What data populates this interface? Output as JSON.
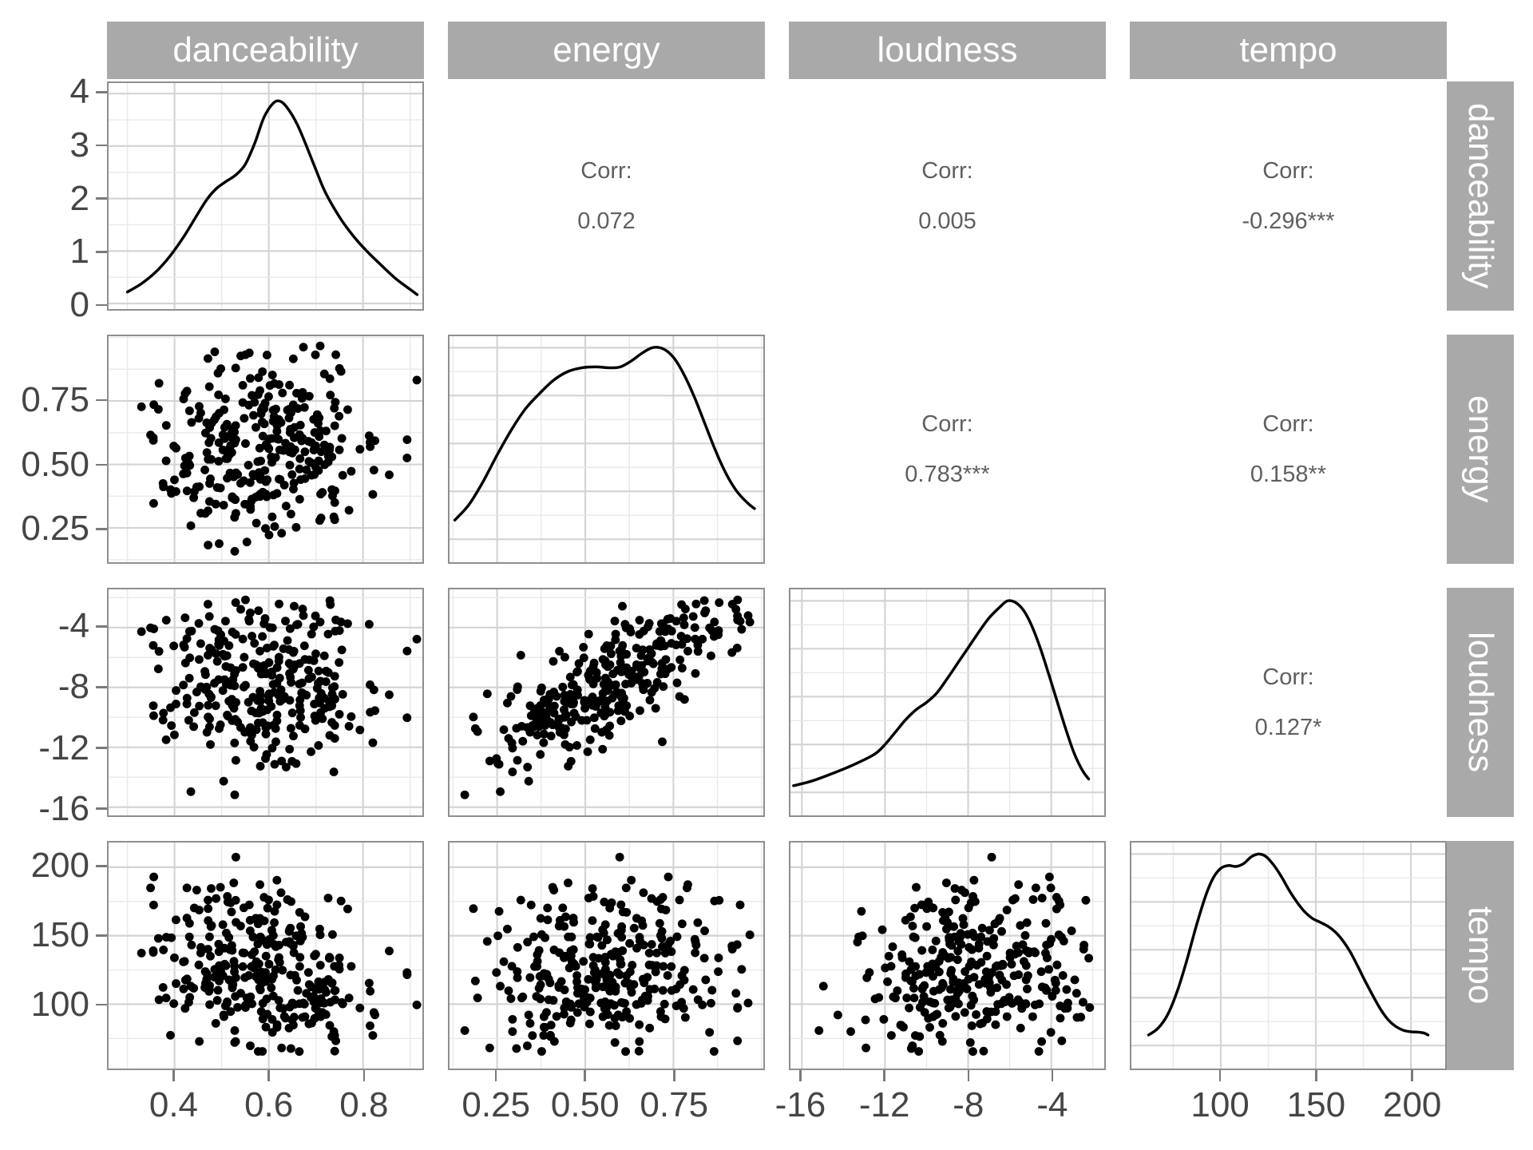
{
  "style": {
    "strip_bg": "#a9a9a9",
    "strip_text_color": "#ffffff",
    "panel_border_color": "#8f8f8f",
    "grid_major_color": "#d4d4d4",
    "grid_minor_color": "#e9e9e9",
    "axis_text_color": "#454545",
    "tick_mark_color": "#7a7a7a",
    "corr_text_color": "#5f5f5f",
    "point_color": "#000000",
    "density_line_color": "#000000"
  },
  "chart_data": {
    "type": "scatter",
    "subtype": "scatterplot-matrix-ggpairs",
    "title": "",
    "variables": [
      "danceability",
      "energy",
      "loudness",
      "tempo"
    ],
    "legend": "none",
    "grid": "on",
    "layout": {
      "diagonal": "density-curve",
      "lower_triangle": "scatter",
      "upper_triangle": "correlation-text"
    },
    "axes": {
      "danceability": {
        "range": [
          0.26,
          0.926
        ],
        "majors": [
          {
            "v": 0.4,
            "label": "0.4"
          },
          {
            "v": 0.6,
            "label": "0.6"
          },
          {
            "v": 0.8,
            "label": "0.8"
          }
        ],
        "minors": [
          0.3,
          0.5,
          0.7,
          0.9
        ]
      },
      "energy": {
        "range": [
          0.115,
          1.005
        ],
        "majors": [
          {
            "v": 0.25,
            "label": "0.25"
          },
          {
            "v": 0.5,
            "label": "0.50"
          },
          {
            "v": 0.75,
            "label": "0.75"
          }
        ],
        "minors": [
          0.125,
          0.375,
          0.625,
          0.875,
          1.0
        ]
      },
      "loudness": {
        "range": [
          -16.55,
          -1.45
        ],
        "majors": [
          {
            "v": -16,
            "label": "-16"
          },
          {
            "v": -12,
            "label": "-12"
          },
          {
            "v": -8,
            "label": "-8"
          },
          {
            "v": -4,
            "label": "-4"
          }
        ],
        "minors": [
          -14,
          -10,
          -6,
          -2
        ]
      },
      "tempo": {
        "range": [
          53,
          218
        ],
        "majors": [
          {
            "v": 100,
            "label": "100"
          },
          {
            "v": 150,
            "label": "150"
          },
          {
            "v": 200,
            "label": "200"
          }
        ],
        "minors": [
          75,
          125,
          175
        ]
      },
      "density_row1": {
        "range": [
          -0.105,
          4.2
        ],
        "majors": [
          {
            "v": 0,
            "label": "0"
          },
          {
            "v": 1,
            "label": "1"
          },
          {
            "v": 2,
            "label": "2"
          },
          {
            "v": 3,
            "label": "3"
          },
          {
            "v": 4,
            "label": "4"
          }
        ],
        "minors": [
          0.5,
          1.5,
          2.5,
          3.5
        ]
      },
      "density_norm": {
        "range": [
          -0.12,
          1.06
        ],
        "majors": [
          {
            "v": 0
          },
          {
            "v": 0.25
          },
          {
            "v": 0.5
          },
          {
            "v": 0.75
          },
          {
            "v": 1.0
          }
        ],
        "minors": [
          0.125,
          0.375,
          0.625,
          0.875
        ]
      }
    },
    "correlations": [
      {
        "x": "energy",
        "y": "danceability",
        "label": "Corr:",
        "value": "0.072"
      },
      {
        "x": "loudness",
        "y": "danceability",
        "label": "Corr:",
        "value": "0.005"
      },
      {
        "x": "tempo",
        "y": "danceability",
        "label": "Corr:",
        "value": "-0.296***"
      },
      {
        "x": "loudness",
        "y": "energy",
        "label": "Corr:",
        "value": "0.783***"
      },
      {
        "x": "tempo",
        "y": "energy",
        "label": "Corr:",
        "value": "0.158**"
      },
      {
        "x": "tempo",
        "y": "loudness",
        "label": "Corr:",
        "value": "0.127*"
      }
    ],
    "densities": {
      "danceability": [
        [
          0.3,
          0.22
        ],
        [
          0.33,
          0.38
        ],
        [
          0.36,
          0.6
        ],
        [
          0.39,
          0.9
        ],
        [
          0.42,
          1.28
        ],
        [
          0.45,
          1.72
        ],
        [
          0.47,
          2.0
        ],
        [
          0.49,
          2.2
        ],
        [
          0.51,
          2.33
        ],
        [
          0.53,
          2.45
        ],
        [
          0.55,
          2.65
        ],
        [
          0.57,
          3.05
        ],
        [
          0.59,
          3.55
        ],
        [
          0.61,
          3.82
        ],
        [
          0.625,
          3.85
        ],
        [
          0.64,
          3.72
        ],
        [
          0.66,
          3.42
        ],
        [
          0.68,
          3.0
        ],
        [
          0.7,
          2.55
        ],
        [
          0.72,
          2.12
        ],
        [
          0.75,
          1.65
        ],
        [
          0.78,
          1.28
        ],
        [
          0.81,
          0.98
        ],
        [
          0.84,
          0.72
        ],
        [
          0.87,
          0.47
        ],
        [
          0.9,
          0.27
        ],
        [
          0.915,
          0.17
        ]
      ],
      "energy": [
        [
          0.13,
          0.1
        ],
        [
          0.17,
          0.18
        ],
        [
          0.21,
          0.3
        ],
        [
          0.25,
          0.44
        ],
        [
          0.29,
          0.57
        ],
        [
          0.33,
          0.68
        ],
        [
          0.37,
          0.76
        ],
        [
          0.41,
          0.83
        ],
        [
          0.45,
          0.875
        ],
        [
          0.49,
          0.895
        ],
        [
          0.53,
          0.9
        ],
        [
          0.57,
          0.895
        ],
        [
          0.6,
          0.9
        ],
        [
          0.63,
          0.93
        ],
        [
          0.66,
          0.97
        ],
        [
          0.69,
          1.0
        ],
        [
          0.72,
          0.995
        ],
        [
          0.75,
          0.95
        ],
        [
          0.78,
          0.86
        ],
        [
          0.81,
          0.74
        ],
        [
          0.84,
          0.6
        ],
        [
          0.87,
          0.46
        ],
        [
          0.9,
          0.34
        ],
        [
          0.93,
          0.25
        ],
        [
          0.96,
          0.19
        ],
        [
          0.98,
          0.16
        ]
      ],
      "loudness": [
        [
          -16.4,
          0.035
        ],
        [
          -15.5,
          0.06
        ],
        [
          -14.5,
          0.1
        ],
        [
          -13.5,
          0.145
        ],
        [
          -12.5,
          0.2
        ],
        [
          -12,
          0.25
        ],
        [
          -11.5,
          0.315
        ],
        [
          -11,
          0.38
        ],
        [
          -10.5,
          0.432
        ],
        [
          -10,
          0.47
        ],
        [
          -9.5,
          0.52
        ],
        [
          -9,
          0.595
        ],
        [
          -8.5,
          0.675
        ],
        [
          -8,
          0.755
        ],
        [
          -7.5,
          0.835
        ],
        [
          -7,
          0.91
        ],
        [
          -6.5,
          0.965
        ],
        [
          -6.1,
          1.0
        ],
        [
          -5.7,
          0.99
        ],
        [
          -5.3,
          0.945
        ],
        [
          -4.9,
          0.86
        ],
        [
          -4.5,
          0.745
        ],
        [
          -4.1,
          0.61
        ],
        [
          -3.7,
          0.47
        ],
        [
          -3.3,
          0.33
        ],
        [
          -2.9,
          0.205
        ],
        [
          -2.5,
          0.115
        ],
        [
          -2.2,
          0.07
        ]
      ],
      "tempo": [
        [
          62,
          0.055
        ],
        [
          67,
          0.09
        ],
        [
          72,
          0.16
        ],
        [
          77,
          0.28
        ],
        [
          82,
          0.44
        ],
        [
          87,
          0.62
        ],
        [
          92,
          0.78
        ],
        [
          96,
          0.875
        ],
        [
          100,
          0.925
        ],
        [
          104,
          0.94
        ],
        [
          108,
          0.935
        ],
        [
          112,
          0.95
        ],
        [
          116,
          0.985
        ],
        [
          120,
          1.0
        ],
        [
          124,
          0.985
        ],
        [
          128,
          0.94
        ],
        [
          132,
          0.88
        ],
        [
          136,
          0.81
        ],
        [
          140,
          0.75
        ],
        [
          144,
          0.7
        ],
        [
          148,
          0.665
        ],
        [
          152,
          0.645
        ],
        [
          156,
          0.625
        ],
        [
          160,
          0.595
        ],
        [
          164,
          0.55
        ],
        [
          168,
          0.49
        ],
        [
          172,
          0.415
        ],
        [
          176,
          0.335
        ],
        [
          180,
          0.26
        ],
        [
          184,
          0.19
        ],
        [
          188,
          0.135
        ],
        [
          192,
          0.1
        ],
        [
          196,
          0.08
        ],
        [
          200,
          0.072
        ],
        [
          204,
          0.07
        ],
        [
          207,
          0.065
        ],
        [
          209,
          0.055
        ]
      ]
    },
    "scatter_model": {
      "n": 310,
      "seed": 7,
      "means": {
        "danceability": 0.597,
        "energy": 0.58,
        "loudness": -7.4,
        "tempo": 126
      },
      "sds": {
        "danceability": 0.115,
        "energy": 0.19,
        "loudness": 3.05,
        "tempo": 33
      },
      "bounds": {
        "danceability": [
          0.3,
          0.915
        ],
        "energy": [
          0.13,
          0.985
        ],
        "loudness": [
          -16.4,
          -2.1
        ],
        "tempo": [
          62,
          209
        ]
      },
      "correlation_matrix": [
        [
          1.0,
          0.072,
          0.005,
          -0.296
        ],
        [
          0.072,
          1.0,
          0.783,
          0.158
        ],
        [
          0.005,
          0.783,
          1.0,
          0.127
        ],
        [
          -0.296,
          0.158,
          0.127,
          1.0
        ]
      ]
    }
  }
}
